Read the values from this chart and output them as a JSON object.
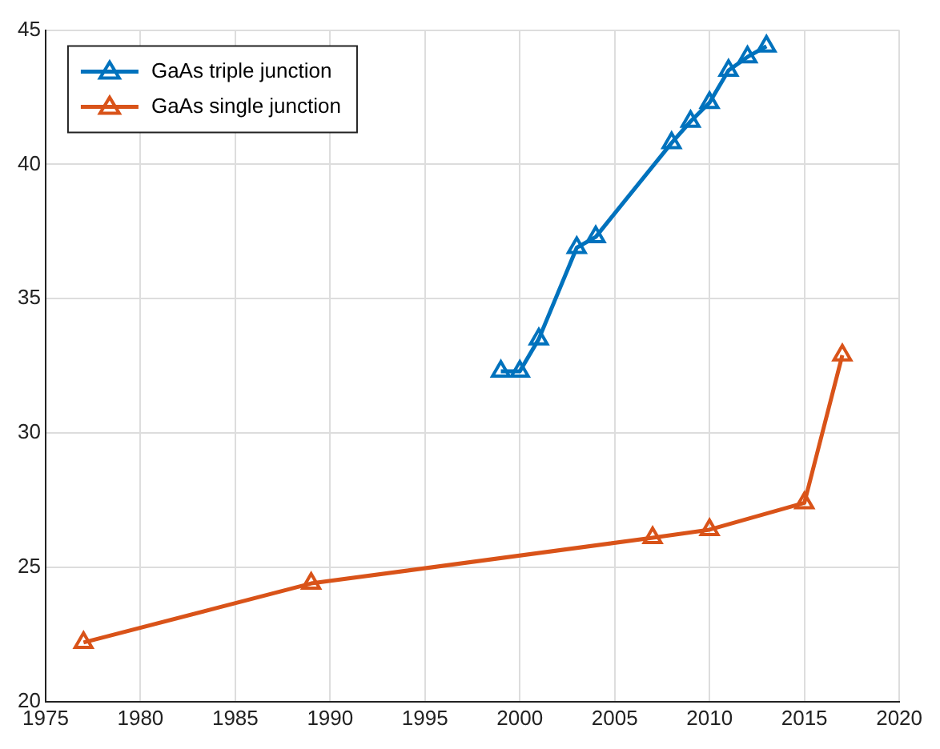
{
  "chart_data": {
    "type": "line",
    "xlim": [
      1975,
      2020
    ],
    "xticks": [
      1975,
      1980,
      1985,
      1990,
      1995,
      2000,
      2005,
      2010,
      2015,
      2020
    ],
    "ylim": [
      20,
      45
    ],
    "yticks": [
      20,
      25,
      30,
      35,
      40,
      45
    ],
    "grid": true,
    "legend": "top left",
    "marker": "triangle",
    "line_style": "solid",
    "series": [
      {
        "name": "GaAs triple junction",
        "color": "#0072bd",
        "x": [
          1999,
          2000,
          2001,
          2003,
          2004,
          2008,
          2009,
          2010,
          2011,
          2012,
          2013
        ],
        "values": [
          32.3,
          32.3,
          33.5,
          36.9,
          37.3,
          40.8,
          41.6,
          42.3,
          43.5,
          44.0,
          44.4
        ]
      },
      {
        "name": "GaAs single junction",
        "color": "#d95319",
        "x": [
          1977,
          1989,
          2007,
          2010,
          2015,
          2017
        ],
        "values": [
          22.2,
          24.4,
          26.1,
          26.4,
          27.4,
          32.9
        ]
      }
    ]
  }
}
